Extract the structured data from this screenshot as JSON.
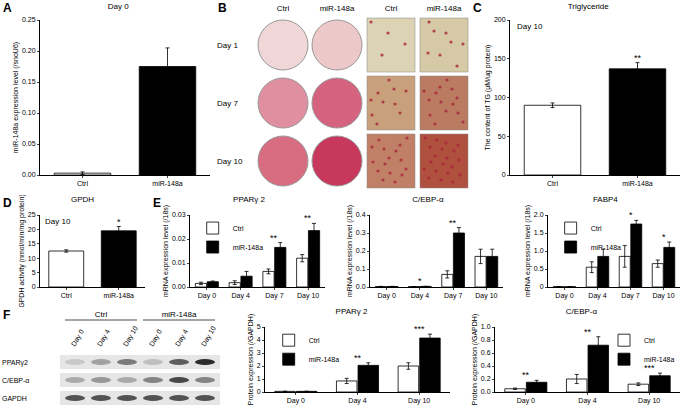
{
  "chart_data": [
    {
      "panel": "A",
      "type": "bar",
      "title": "Day 0",
      "y_label": "miR-148a expression level (/snoU6)",
      "categories": [
        "Ctrl",
        "miR-148a"
      ],
      "values": [
        0.003,
        0.175
      ],
      "errors": [
        0.002,
        0.03
      ],
      "colors": [
        "#ffffff",
        "#000000"
      ],
      "ylim": [
        0,
        0.25
      ],
      "yticks": [
        {
          "value": 0,
          "label": "0.00"
        },
        0.05,
        {
          "value": 0.1,
          "label": "0.10"
        },
        0.15,
        {
          "value": 0.2,
          "label": "0.20"
        },
        0.25
      ],
      "grid": false
    },
    {
      "panel": "C",
      "type": "bar",
      "title": "Triglyceride",
      "subtitle": "Day 10",
      "y_label": "The content of TG (μM/ug protein)",
      "categories": [
        "Ctrl",
        "miR-148a"
      ],
      "values": [
        90,
        137
      ],
      "errors": [
        3,
        8
      ],
      "colors": [
        "#ffffff",
        "#000000"
      ],
      "ylim": [
        0,
        200
      ],
      "yticks": [
        0,
        50,
        100,
        150,
        200
      ],
      "grid": false,
      "annotations": [
        {
          "category": "miR-148a",
          "text": "**"
        }
      ]
    },
    {
      "panel": "D",
      "type": "bar",
      "title": "GPDH",
      "subtitle": "Day 10",
      "y_label": "GPDH activity (nmol/min/mg protein)",
      "categories": [
        "Ctrl",
        "miR-148a"
      ],
      "values": [
        12.5,
        19.5
      ],
      "errors": [
        0.4,
        1.5
      ],
      "colors": [
        "#ffffff",
        "#000000"
      ],
      "ylim": [
        0,
        25
      ],
      "yticks": [
        0,
        5,
        10,
        15,
        20,
        25
      ],
      "grid": false,
      "annotations": [
        {
          "category": "miR-148a",
          "text": "*"
        }
      ]
    },
    {
      "panel": "E",
      "type": "bar",
      "title": "PPARγ 2",
      "y_label": "mRNA expression level (/18s)",
      "categories": [
        "Day 0",
        "Day 4",
        "Day 7",
        "Day 10"
      ],
      "series": [
        {
          "name": "Ctrl",
          "color": "#ffffff",
          "values": [
            0.0015,
            0.0018,
            0.0065,
            0.012
          ],
          "errors": [
            0.0005,
            0.0008,
            0.001,
            0.0015
          ]
        },
        {
          "name": "miR-148a",
          "color": "#000000",
          "values": [
            0.0022,
            0.0045,
            0.0165,
            0.0235
          ],
          "errors": [
            0.0003,
            0.002,
            0.002,
            0.003
          ]
        }
      ],
      "ylim": [
        0,
        0.03
      ],
      "yticks": [
        {
          "value": 0,
          "label": "0.00"
        },
        0.01,
        0.02,
        0.03
      ],
      "grid": false,
      "legend": "top left",
      "annotations": [
        {
          "category": "Day 7",
          "text": "**"
        },
        {
          "category": "Day 10",
          "text": "**"
        }
      ]
    },
    {
      "type": "bar",
      "title": "C/EBP-α",
      "y_label": "mRNA expression level (/18s)",
      "categories": [
        "Day 0",
        "Day 4",
        "Day 7",
        "Day 10"
      ],
      "series": [
        {
          "name": "Ctrl",
          "color": "#ffffff",
          "values": [
            0.0025,
            0.0025,
            0.07,
            0.17
          ],
          "errors": [
            0.001,
            0.0002,
            0.02,
            0.04
          ]
        },
        {
          "name": "miR-148a",
          "color": "#000000",
          "values": [
            0.0028,
            0.0033,
            0.3,
            0.17
          ],
          "errors": [
            0.001,
            0.0002,
            0.03,
            0.04
          ]
        }
      ],
      "ylim": [
        0,
        0.4
      ],
      "yticks": [
        {
          "value": 0,
          "label": "0.0"
        },
        0.1,
        0.2,
        0.3,
        0.4
      ],
      "grid": false,
      "annotations": [
        {
          "category": "Day 4",
          "text": "*"
        },
        {
          "category": "Day 7",
          "text": "**"
        }
      ]
    },
    {
      "type": "bar",
      "title": "FABP4",
      "y_label": "mRNA expression level (/18s)",
      "categories": [
        "Day 0",
        "Day 4",
        "Day 7",
        "Day 10"
      ],
      "series": [
        {
          "name": "Ctrl",
          "color": "#ffffff",
          "values": [
            0.01,
            0.55,
            0.85,
            0.65
          ],
          "errors": [
            0.004,
            0.15,
            0.3,
            0.1
          ]
        },
        {
          "name": "miR-148a",
          "color": "#000000",
          "values": [
            0.007,
            0.85,
            1.75,
            1.1
          ],
          "errors": [
            0.002,
            0.2,
            0.1,
            0.15
          ]
        }
      ],
      "ylim": [
        0,
        2
      ],
      "yticks": [
        0,
        0.5,
        {
          "value": 1,
          "label": "1.0"
        },
        1.5,
        {
          "value": 2,
          "label": "2.0"
        }
      ],
      "grid": false,
      "legend": "top left",
      "annotations": [
        {
          "category": "Day 7",
          "text": "*"
        },
        {
          "category": "Day 10",
          "text": "*"
        }
      ]
    },
    {
      "type": "bar",
      "title": "PPARγ 2",
      "y_label": "Protein expression (/GAPDH)",
      "categories": [
        "Day 0",
        "Day 4",
        "Day 10"
      ],
      "series": [
        {
          "name": "Ctrl",
          "color": "#ffffff",
          "values": [
            0.05,
            0.85,
            2.0
          ],
          "errors": [
            0.01,
            0.2,
            0.25
          ]
        },
        {
          "name": "miR-148a",
          "color": "#000000",
          "values": [
            0.05,
            2.05,
            4.15
          ],
          "errors": [
            0.01,
            0.2,
            0.3
          ]
        }
      ],
      "ylim": [
        0,
        5
      ],
      "yticks": [
        0,
        1,
        2,
        3,
        4,
        5
      ],
      "grid": false,
      "legend": "top left",
      "annotations": [
        {
          "category": "Day 4",
          "text": "**"
        },
        {
          "category": "Day 10",
          "text": "***"
        }
      ]
    },
    {
      "type": "bar",
      "title": "C/EBP-α",
      "y_label": "Protein expression (/GAPDH)",
      "categories": [
        "Day 0",
        "Day 4",
        "Day 10"
      ],
      "series": [
        {
          "name": "Ctrl",
          "color": "#ffffff",
          "values": [
            0.05,
            0.2,
            0.12
          ],
          "errors": [
            0.01,
            0.07,
            0.02
          ]
        },
        {
          "name": "miR-148a",
          "color": "#000000",
          "values": [
            0.15,
            0.72,
            0.25
          ],
          "errors": [
            0.03,
            0.13,
            0.04
          ]
        }
      ],
      "ylim": [
        0,
        1
      ],
      "yticks": [
        {
          "value": 0,
          "label": "0.0"
        },
        0.2,
        0.4,
        0.6,
        0.8,
        {
          "value": 1,
          "label": "1.0"
        }
      ],
      "grid": false,
      "legend": "top right",
      "annotations": [
        {
          "category": "Day 0",
          "text": "**"
        },
        {
          "category": "Day 4",
          "text": "**"
        },
        {
          "category": "Day 10",
          "text": "***"
        }
      ]
    }
  ],
  "images": [
    {
      "panel": "B",
      "columns": [
        "Ctrl",
        "miR-148a"
      ],
      "rows": [
        "Day 1",
        "Day 7",
        "Day 10"
      ]
    },
    {
      "panel": "F",
      "groups": [
        "Ctrl",
        "miR-148a"
      ],
      "lanes": [
        "Day 0",
        "Day 4",
        "Day 10"
      ],
      "bands": [
        "PPARγ2",
        "C/EBP-α",
        "GAPDH"
      ]
    }
  ]
}
